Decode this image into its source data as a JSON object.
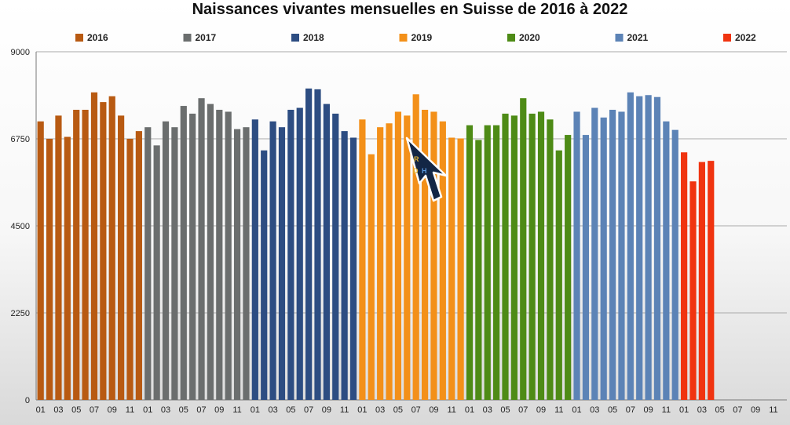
{
  "chart_data": {
    "type": "bar",
    "title": "Naissances vivantes mensuelles en Suisse de 2016 à 2022",
    "xlabel": "",
    "ylabel": "",
    "ylim": [
      0,
      9000
    ],
    "yticks": [
      "0",
      "2250",
      "4500",
      "6750",
      "9000"
    ],
    "grid": true,
    "legend_position": "top",
    "month_labels": [
      "01",
      "",
      "03",
      "",
      "05",
      "",
      "07",
      "",
      "09",
      "",
      "11",
      ""
    ],
    "series": [
      {
        "name": "2016",
        "color": "#B85A12",
        "values": [
          7200,
          6750,
          7350,
          6800,
          7500,
          7500,
          7950,
          7700,
          7850,
          7350,
          6750,
          6950
        ]
      },
      {
        "name": "2017",
        "color": "#6B6E6E",
        "values": [
          7050,
          6580,
          7200,
          7050,
          7600,
          7400,
          7800,
          7650,
          7500,
          7450,
          7000,
          7050
        ]
      },
      {
        "name": "2018",
        "color": "#2D4D82",
        "values": [
          7250,
          6450,
          7200,
          7050,
          7500,
          7550,
          8050,
          8030,
          7650,
          7400,
          6950,
          6780
        ]
      },
      {
        "name": "2019",
        "color": "#F39019",
        "values": [
          7250,
          6350,
          7050,
          7150,
          7450,
          7350,
          7900,
          7500,
          7450,
          7200,
          6780,
          6760
        ]
      },
      {
        "name": "2020",
        "color": "#4E8B16",
        "values": [
          7100,
          6720,
          7100,
          7100,
          7400,
          7350,
          7800,
          7400,
          7450,
          7250,
          6450,
          6850
        ]
      },
      {
        "name": "2021",
        "color": "#5C83B6",
        "values": [
          7450,
          6850,
          7550,
          7300,
          7500,
          7450,
          7950,
          7850,
          7880,
          7830,
          7200,
          6980
        ]
      },
      {
        "name": "2022",
        "color": "#F03410",
        "values": [
          6400,
          5650,
          6150,
          6180,
          null,
          null,
          null,
          null,
          null,
          null,
          null,
          null
        ]
      }
    ]
  }
}
